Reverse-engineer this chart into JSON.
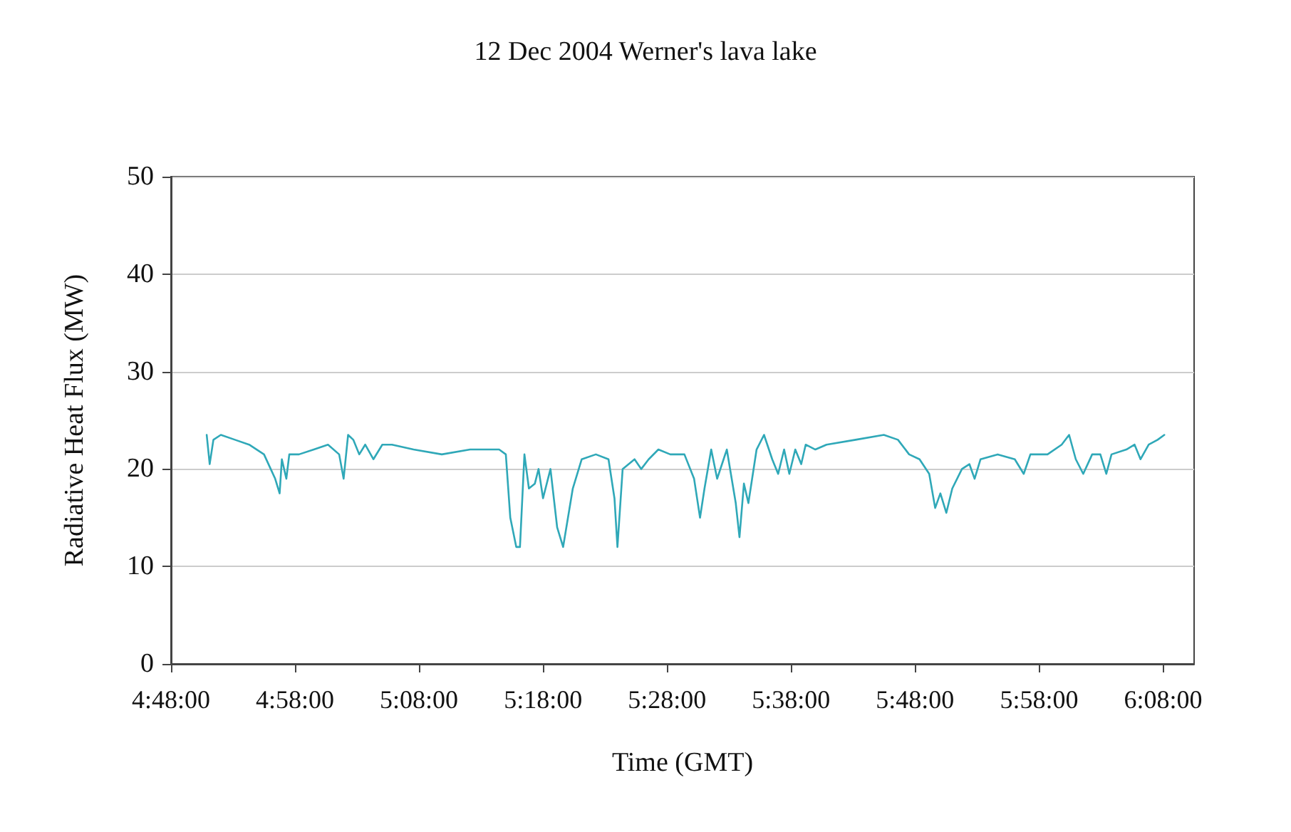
{
  "chart_data": {
    "type": "line",
    "title": "12 Dec 2004 Werner's lava lake",
    "xlabel": "Time (GMT)",
    "ylabel": "Radiative Heat Flux (MW)",
    "xlim": [
      4.8,
      6.175
    ],
    "xticks": [
      {
        "value": 4.8,
        "label": "4:48:00"
      },
      {
        "value": 4.9667,
        "label": "4:58:00"
      },
      {
        "value": 5.1333,
        "label": "5:08:00"
      },
      {
        "value": 5.3,
        "label": "5:18:00"
      },
      {
        "value": 5.4667,
        "label": "5:28:00"
      },
      {
        "value": 5.6333,
        "label": "5:38:00"
      },
      {
        "value": 5.8,
        "label": "5:48:00"
      },
      {
        "value": 5.9667,
        "label": "5:58:00"
      },
      {
        "value": 6.1333,
        "label": "6:08:00"
      }
    ],
    "ylim": [
      0,
      50
    ],
    "yticks": [
      0,
      10,
      20,
      30,
      40,
      50
    ],
    "grid": "y",
    "marker": "none",
    "line_style": "solid",
    "series": [
      {
        "color": "#2fa8b8",
        "x": [
          4.848,
          4.852,
          4.857,
          4.867,
          4.886,
          4.905,
          4.925,
          4.934,
          4.94,
          4.946,
          4.949,
          4.955,
          4.959,
          4.972,
          4.992,
          5.011,
          5.026,
          5.032,
          5.038,
          5.045,
          5.053,
          5.061,
          5.072,
          5.084,
          5.097,
          5.126,
          5.164,
          5.202,
          5.241,
          5.25,
          5.256,
          5.264,
          5.269,
          5.275,
          5.281,
          5.289,
          5.294,
          5.3,
          5.31,
          5.319,
          5.327,
          5.34,
          5.352,
          5.371,
          5.388,
          5.396,
          5.4,
          5.407,
          5.423,
          5.432,
          5.442,
          5.455,
          5.471,
          5.49,
          5.503,
          5.511,
          5.517,
          5.526,
          5.534,
          5.547,
          5.559,
          5.564,
          5.57,
          5.576,
          5.587,
          5.597,
          5.608,
          5.616,
          5.624,
          5.631,
          5.639,
          5.647,
          5.653,
          5.666,
          5.681,
          5.72,
          5.758,
          5.777,
          5.792,
          5.806,
          5.819,
          5.827,
          5.834,
          5.842,
          5.85,
          5.863,
          5.873,
          5.88,
          5.888,
          5.911,
          5.934,
          5.946,
          5.955,
          5.978,
          5.997,
          6.007,
          6.016,
          6.026,
          6.038,
          6.049,
          6.057,
          6.064,
          6.084,
          6.095,
          6.103,
          6.114,
          6.126,
          6.135
        ],
        "values": [
          23.5,
          20.5,
          23,
          23.5,
          23,
          22.5,
          21.5,
          20,
          19,
          17.5,
          21,
          19,
          21.5,
          21.5,
          22,
          22.5,
          21.5,
          19,
          23.5,
          23,
          21.5,
          22.5,
          21,
          22.5,
          22.5,
          22,
          21.5,
          22,
          22,
          21.5,
          15,
          12,
          12,
          21.5,
          18,
          18.5,
          20,
          17,
          20,
          14,
          12,
          18,
          21,
          21.5,
          21,
          17,
          12,
          20,
          21,
          20,
          21,
          22,
          21.5,
          21.5,
          19,
          15,
          18,
          22,
          19,
          22,
          16.5,
          13,
          18.5,
          16.5,
          22,
          23.5,
          21,
          19.5,
          22,
          19.5,
          22,
          20.5,
          22.5,
          22,
          22.5,
          23,
          23.5,
          23,
          21.5,
          21,
          19.5,
          16,
          17.5,
          15.5,
          18,
          20,
          20.5,
          19,
          21,
          21.5,
          21,
          19.5,
          21.5,
          21.5,
          22.5,
          23.5,
          21,
          19.5,
          21.5,
          21.5,
          19.5,
          21.5,
          22,
          22.5,
          21,
          22.5,
          23,
          23.5
        ]
      }
    ]
  }
}
